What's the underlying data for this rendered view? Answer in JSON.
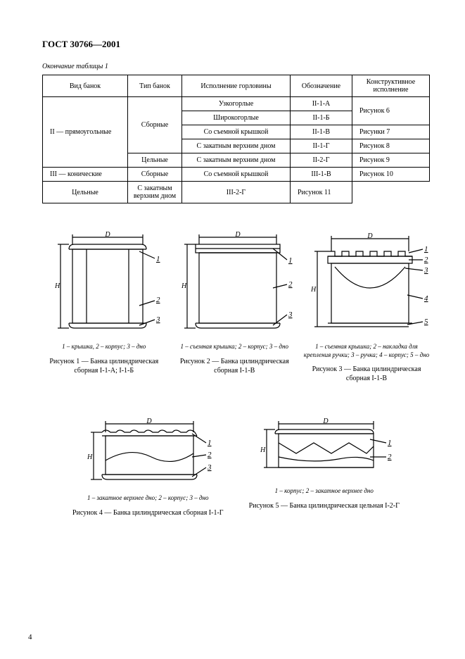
{
  "doc_title": "ГОСТ 30766—2001",
  "table_continuation": "Окончание таблицы 1",
  "table": {
    "headers": [
      "Вид банок",
      "Тип банок",
      "Исполнение горловины",
      "Обозначение",
      "Конструктивное исполнение"
    ],
    "rows": [
      {
        "vid": "II — прямоугольные",
        "tip": "Сборные",
        "gor": "Узкогорлые",
        "ob": "II-1-А",
        "kon": "Рисунок 6",
        "vidspan": 5,
        "tipspan": 4,
        "konspan": 2
      },
      {
        "gor": "Широкогорлые",
        "ob": "II-1-Б"
      },
      {
        "gor": "Со съемной крышкой",
        "ob": "II-1-В",
        "kon": "Рисунки 7"
      },
      {
        "gor": "С закатным верхним дном",
        "ob": "II-1-Г",
        "kon": "Рисунок 8"
      },
      {
        "tip": "Цельные",
        "gor": "С закатным верхним дном",
        "ob": "II-2-Г",
        "kon": "Рисунок 9"
      },
      {
        "vid": "III — конические",
        "tip": "Сборные",
        "gor": "Со съемной крышкой",
        "ob": "III-1-В",
        "kon": "Рисунок 10"
      },
      {
        "tip": "Цельные",
        "gor": "С закатным верхним дном",
        "ob": "III-2-Г",
        "kon": "Рисунок 11"
      }
    ]
  },
  "figures_row1": [
    {
      "legend": "1 – крышка, 2 – корпус; 3 – дно",
      "caption": "Рисунок 1 — Банка цилиндрическая сборная I-1-А; I-1-Б",
      "labels": [
        "1",
        "2",
        "3"
      ],
      "dim_h": "H",
      "dim_d": "D"
    },
    {
      "legend": "1 – съемная крышка; 2 – корпус; 3 – дно",
      "caption": "Рисунок 2 — Банка цилиндрическая сборная I-1-В",
      "labels": [
        "1",
        "2",
        "3"
      ],
      "dim_h": "H",
      "dim_d": "D"
    },
    {
      "legend": "1 – съемная крышка; 2 – накладка для крепления ручки; 3 – ручка; 4 – корпус; 5 – дно",
      "caption": "Рисунок 3 — Банка цилиндрическая сборная I-1-В",
      "labels": [
        "1",
        "2",
        "3",
        "4",
        "5"
      ],
      "dim_h": "H",
      "dim_d": "D"
    }
  ],
  "figures_row2": [
    {
      "legend": "1 – закатное верхнее дно; 2 – корпус; 3 – дно",
      "caption": "Рисунок 4 — Банка цилиндрическая сборная I-1-Г",
      "labels": [
        "1",
        "2",
        "3"
      ],
      "dim_h": "H",
      "dim_d": "D"
    },
    {
      "legend": "1 – корпус; 2 – закатное верхнее дно",
      "caption": "Рисунок 5 — Банка цилиндрическая цельная I-2-Г",
      "labels": [
        "1",
        "2"
      ],
      "dim_h": "H",
      "dim_d": "D"
    }
  ],
  "page_number": "4",
  "style": {
    "stroke": "#000",
    "stroke_width": 1.2,
    "font": "italic 10px Times"
  }
}
